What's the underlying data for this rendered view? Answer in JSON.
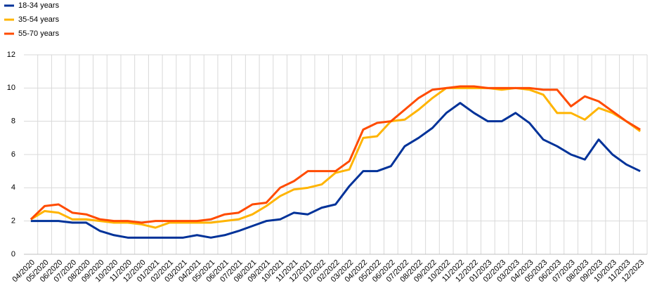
{
  "chart_data": {
    "type": "line",
    "categories": [
      "04/2020",
      "05/2020",
      "06/2020",
      "07/2020",
      "08/2020",
      "09/2020",
      "10/2020",
      "11/2020",
      "12/2020",
      "01/2021",
      "02/2021",
      "03/2021",
      "04/2021",
      "05/2021",
      "06/2021",
      "07/2021",
      "08/2021",
      "09/2021",
      "10/2021",
      "11/2021",
      "12/2021",
      "01/2022",
      "02/2022",
      "03/2022",
      "04/2022",
      "05/2022",
      "06/2022",
      "07/2022",
      "08/2022",
      "09/2022",
      "10/2022",
      "11/2022",
      "12/2022",
      "01/2023",
      "02/2023",
      "03/2023",
      "04/2023",
      "05/2023",
      "06/2023",
      "07/2023",
      "08/2023",
      "09/2023",
      "10/2023",
      "11/2023",
      "12/2023"
    ],
    "series": [
      {
        "name": "18-34 years",
        "color": "#003299",
        "values": [
          2,
          2,
          2,
          1.9,
          1.9,
          1.4,
          1.15,
          1.0,
          1.0,
          1.0,
          1.0,
          1.0,
          1.15,
          1.0,
          1.15,
          1.4,
          1.7,
          2.0,
          2.1,
          2.5,
          2.4,
          2.8,
          3.0,
          4.1,
          5.0,
          5.0,
          5.3,
          6.5,
          7.0,
          7.6,
          8.5,
          9.1,
          8.5,
          8.0,
          8.0,
          8.5,
          7.9,
          6.9,
          6.5,
          6.0,
          5.7,
          6.9,
          6.0,
          5.4,
          5.0
        ]
      },
      {
        "name": "35-54 years",
        "color": "#ffb400",
        "values": [
          2.1,
          2.6,
          2.5,
          2.1,
          2.1,
          2.0,
          1.9,
          1.9,
          1.8,
          1.6,
          1.9,
          1.9,
          1.9,
          1.9,
          2.0,
          2.1,
          2.4,
          2.9,
          3.5,
          3.9,
          4.0,
          4.2,
          4.9,
          5.1,
          7.0,
          7.1,
          8.0,
          8.1,
          8.7,
          9.4,
          10.0,
          10.0,
          10.0,
          10.0,
          9.9,
          10.0,
          9.9,
          9.6,
          8.5,
          8.5,
          8.1,
          8.8,
          8.5,
          8.0,
          7.4
        ]
      },
      {
        "name": "55-70 years",
        "color": "#ff4b00",
        "values": [
          2.1,
          2.9,
          3.0,
          2.5,
          2.4,
          2.1,
          2.0,
          2.0,
          1.9,
          2.0,
          2.0,
          2.0,
          2.0,
          2.1,
          2.4,
          2.5,
          3.0,
          3.1,
          4.0,
          4.4,
          5.0,
          5.0,
          5.0,
          5.6,
          7.5,
          7.9,
          8.0,
          8.7,
          9.4,
          9.9,
          10.0,
          10.1,
          10.1,
          10.0,
          10.0,
          10.0,
          10.0,
          9.9,
          9.9,
          8.9,
          9.5,
          9.2,
          8.6,
          8.0,
          7.5
        ]
      }
    ],
    "ylim": [
      0,
      12
    ],
    "yticks": [
      0,
      2,
      4,
      6,
      8,
      10,
      12
    ],
    "grid": true,
    "legend": "top-left"
  }
}
